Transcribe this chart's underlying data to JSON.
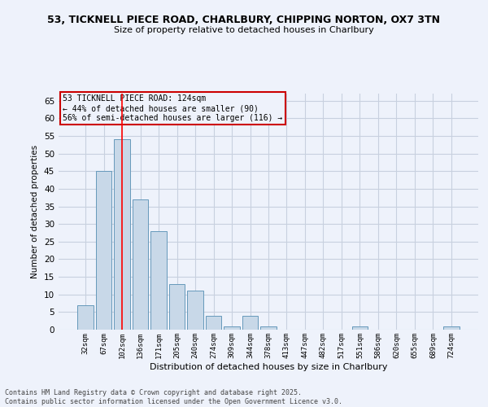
{
  "title_line1": "53, TICKNELL PIECE ROAD, CHARLBURY, CHIPPING NORTON, OX7 3TN",
  "title_line2": "Size of property relative to detached houses in Charlbury",
  "xlabel": "Distribution of detached houses by size in Charlbury",
  "ylabel": "Number of detached properties",
  "categories": [
    "32sqm",
    "67sqm",
    "102sqm",
    "136sqm",
    "171sqm",
    "205sqm",
    "240sqm",
    "274sqm",
    "309sqm",
    "344sqm",
    "378sqm",
    "413sqm",
    "447sqm",
    "482sqm",
    "517sqm",
    "551sqm",
    "586sqm",
    "620sqm",
    "655sqm",
    "689sqm",
    "724sqm"
  ],
  "values": [
    7,
    45,
    54,
    37,
    28,
    13,
    11,
    4,
    1,
    4,
    1,
    0,
    0,
    0,
    0,
    1,
    0,
    0,
    0,
    0,
    1
  ],
  "bar_color": "#c8d8e8",
  "bar_edge_color": "#6699bb",
  "grid_color": "#c8d0df",
  "background_color": "#eef2fb",
  "annotation_box_color": "#cc0000",
  "annotation_text_line1": "53 TICKNELL PIECE ROAD: 124sqm",
  "annotation_text_line2": "← 44% of detached houses are smaller (90)",
  "annotation_text_line3": "56% of semi-detached houses are larger (116) →",
  "red_line_x": 2,
  "ylim": [
    0,
    67
  ],
  "yticks": [
    0,
    5,
    10,
    15,
    20,
    25,
    30,
    35,
    40,
    45,
    50,
    55,
    60,
    65
  ],
  "footnote_line1": "Contains HM Land Registry data © Crown copyright and database right 2025.",
  "footnote_line2": "Contains public sector information licensed under the Open Government Licence v3.0."
}
